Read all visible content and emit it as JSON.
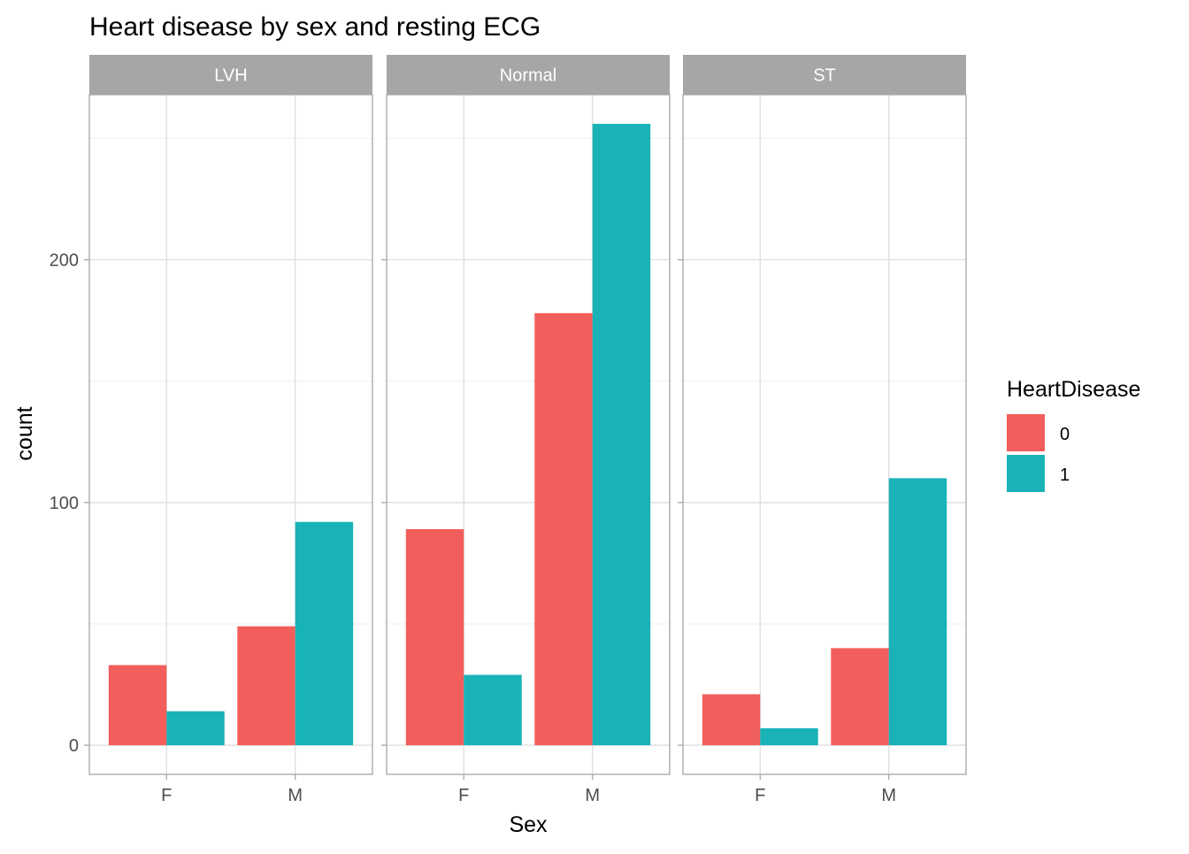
{
  "chart_data": {
    "type": "bar",
    "title": "Heart disease by sex and resting ECG",
    "xlabel": "Sex",
    "ylabel": "count",
    "y_ticks": [
      0,
      100,
      200
    ],
    "ylim": [
      -12,
      268
    ],
    "grid": true,
    "legend": {
      "title": "HeartDisease",
      "placement": "right",
      "entries": [
        {
          "label": "0",
          "color": "#F25E5B"
        },
        {
          "label": "1",
          "color": "#19B3B7"
        }
      ]
    },
    "categories": [
      "F",
      "M"
    ],
    "facets": [
      {
        "label": "LVH",
        "series": [
          {
            "name": "0",
            "values": [
              33,
              49
            ]
          },
          {
            "name": "1",
            "values": [
              14,
              92
            ]
          }
        ]
      },
      {
        "label": "Normal",
        "series": [
          {
            "name": "0",
            "values": [
              89,
              178
            ]
          },
          {
            "name": "1",
            "values": [
              29,
              256
            ]
          }
        ]
      },
      {
        "label": "ST",
        "series": [
          {
            "name": "0",
            "values": [
              21,
              40
            ]
          },
          {
            "name": "1",
            "values": [
              7,
              110
            ]
          }
        ]
      }
    ],
    "colors": {
      "strip_bg": "#A6A6A6",
      "strip_text": "#FFFFFF",
      "panel_border": "#A6A6A6",
      "grid_major": "#DEDEDE",
      "grid_minor": "#EFEFEF",
      "axis_text": "#4D4D4D"
    }
  }
}
